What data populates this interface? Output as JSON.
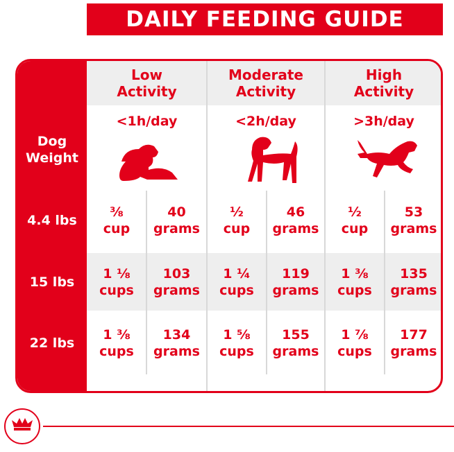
{
  "header": {
    "title": "DAILY FEEDING GUIDE"
  },
  "table": {
    "row_header": "Dog Weight",
    "columns": [
      {
        "label": "Low Activity",
        "time": "<1h/day"
      },
      {
        "label": "Moderate Activity",
        "time": "<2h/day"
      },
      {
        "label": "High Activity",
        "time": ">3h/day"
      }
    ],
    "rows": [
      {
        "weight": "4.4 lbs",
        "cells": [
          [
            {
              "amount": "⅜",
              "unit": "cup"
            },
            {
              "amount": "40",
              "unit": "grams"
            }
          ],
          [
            {
              "amount": "½",
              "unit": "cup"
            },
            {
              "amount": "46",
              "unit": "grams"
            }
          ],
          [
            {
              "amount": "½",
              "unit": "cup"
            },
            {
              "amount": "53",
              "unit": "grams"
            }
          ]
        ]
      },
      {
        "weight": "15 lbs",
        "cells": [
          [
            {
              "amount": "1 ⅛",
              "unit": "cups"
            },
            {
              "amount": "103",
              "unit": "grams"
            }
          ],
          [
            {
              "amount": "1 ¼",
              "unit": "cups"
            },
            {
              "amount": "119",
              "unit": "grams"
            }
          ],
          [
            {
              "amount": "1 ⅜",
              "unit": "cups"
            },
            {
              "amount": "135",
              "unit": "grams"
            }
          ]
        ]
      },
      {
        "weight": "22 lbs",
        "cells": [
          [
            {
              "amount": "1 ⅜",
              "unit": "cups"
            },
            {
              "amount": "134",
              "unit": "grams"
            }
          ],
          [
            {
              "amount": "1 ⅝",
              "unit": "cups"
            },
            {
              "amount": "155",
              "unit": "grams"
            }
          ],
          [
            {
              "amount": "1 ⅞",
              "unit": "cups"
            },
            {
              "amount": "177",
              "unit": "grams"
            }
          ]
        ]
      }
    ]
  }
}
